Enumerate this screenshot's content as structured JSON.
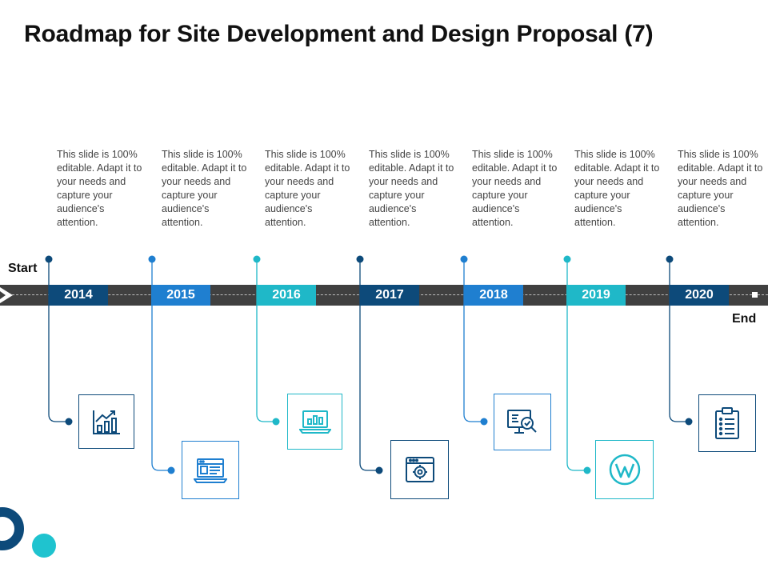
{
  "title": "Roadmap for Site Development and Design Proposal (7)",
  "start_label": "Start",
  "end_label": "End",
  "colors": {
    "navy": "#0d4a7a",
    "blue": "#1f7fd0",
    "teal": "#1fb8c8",
    "band": "#404040"
  },
  "milestones": [
    {
      "year": "2014",
      "text": "This slide is 100% editable. Adapt it to your needs and capture your audience's attention.",
      "icon": "growth-chart-icon",
      "color": "#0d4a7a"
    },
    {
      "year": "2015",
      "text": "This slide is 100% editable. Adapt it to your needs and capture your audience's attention.",
      "icon": "laptop-browser-icon",
      "color": "#1f7fd0"
    },
    {
      "year": "2016",
      "text": "This slide is 100% editable. Adapt it to your needs and capture your audience's attention.",
      "icon": "laptop-analytics-icon",
      "color": "#1fb8c8"
    },
    {
      "year": "2017",
      "text": "This slide is 100% editable. Adapt it to your needs and capture your audience's attention.",
      "icon": "browser-settings-icon",
      "color": "#0d4a7a"
    },
    {
      "year": "2018",
      "text": "This slide is 100% editable. Adapt it to your needs and capture your audience's attention.",
      "icon": "monitor-search-icon",
      "color": "#1f7fd0"
    },
    {
      "year": "2019",
      "text": "This slide is 100% editable. Adapt it to your needs and capture your audience's attention.",
      "icon": "wordpress-logo-icon",
      "color": "#1fb8c8"
    },
    {
      "year": "2020",
      "text": "This slide is 100% editable. Adapt it to your needs and capture your audience's attention.",
      "icon": "clipboard-list-icon",
      "color": "#0d4a7a"
    }
  ]
}
